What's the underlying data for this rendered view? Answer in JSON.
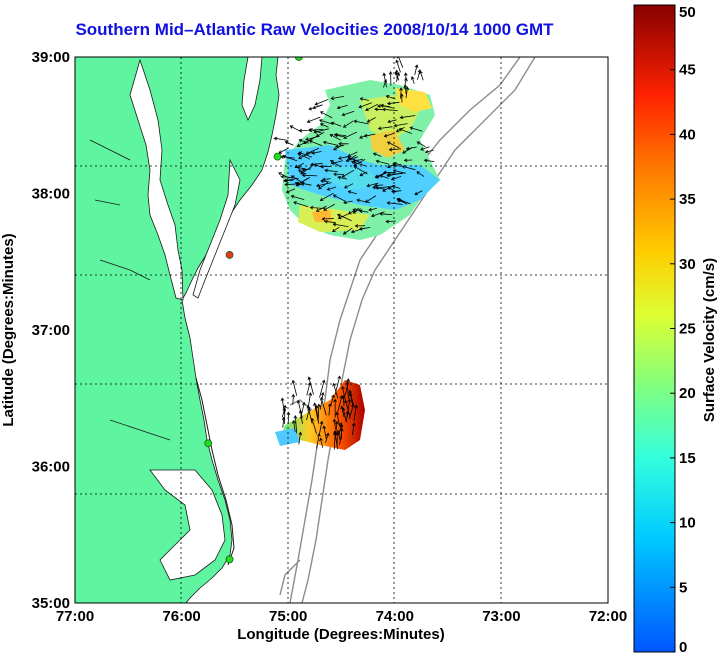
{
  "title": "Southern Mid–Atlantic Raw Velocities 2008/10/14 1000 GMT",
  "x_axis": {
    "label": "Longitude (Degrees:Minutes)",
    "ticks": [
      "77:00",
      "76:00",
      "75:00",
      "74:00",
      "73:00",
      "72:00"
    ],
    "lon_values": [
      -77,
      -76,
      -75,
      -74,
      -73,
      -72
    ]
  },
  "y_axis": {
    "label": "Latitude (Degrees:Minutes)",
    "ticks": [
      "35:00",
      "36:00",
      "37:00",
      "38:00",
      "39:00"
    ],
    "lat_values": [
      35,
      36,
      37,
      38,
      39
    ]
  },
  "colorbar": {
    "label": "Surface Velocity (cm/s)",
    "ticks": [
      "0",
      "5",
      "10",
      "15",
      "20",
      "25",
      "30",
      "35",
      "40",
      "45",
      "50"
    ],
    "range": [
      0,
      50
    ],
    "units": "cm/s"
  },
  "colors": {
    "title": "#1010e0",
    "land": "#5ff5a0",
    "bathymetry": "#8c8c8c",
    "grid": "#000000",
    "station": "#22dd22",
    "station_alert": "#ee3322"
  },
  "stations": [
    {
      "lon": -74.9,
      "lat": 39.0,
      "status": "active"
    },
    {
      "lon": -75.1,
      "lat": 38.27,
      "status": "active"
    },
    {
      "lon": -75.55,
      "lat": 37.55,
      "status": "alert"
    },
    {
      "lon": -75.75,
      "lat": 36.17,
      "status": "active"
    },
    {
      "lon": -75.55,
      "lat": 35.32,
      "status": "active"
    }
  ]
}
